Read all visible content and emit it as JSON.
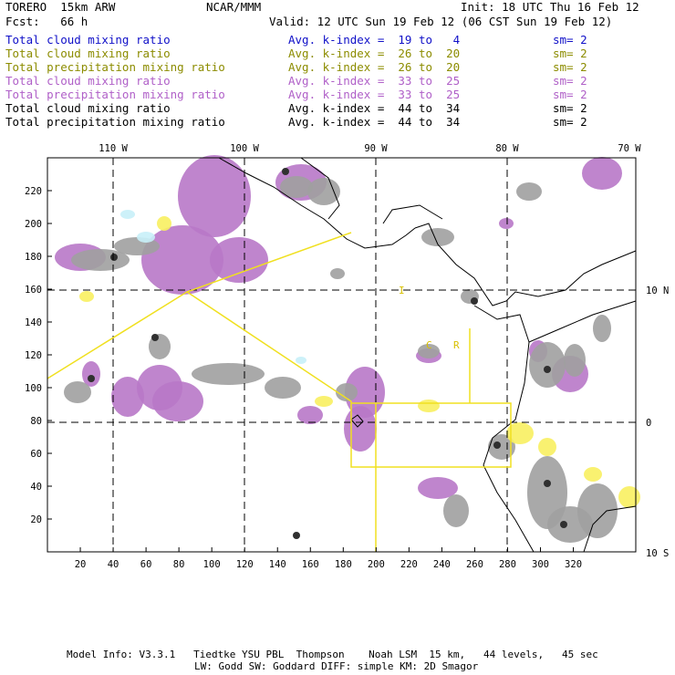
{
  "header": {
    "model": "TORERO  15km ARW",
    "org": "NCAR/MMM",
    "init": "Init: 18 UTC Thu 16 Feb 12",
    "fcst": "Fcst:   66 h",
    "valid": "Valid: 12 UTC Sun 19 Feb 12 (06 CST Sun 19 Feb 12)"
  },
  "legend": [
    {
      "field": "Total cloud mixing ratio",
      "index": "Avg. k-index =  19 to   4",
      "sm": "sm= 2",
      "color": "#1010c8"
    },
    {
      "field": "Total cloud mixing ratio",
      "index": "Avg. k-index =  26 to  20",
      "sm": "sm= 2",
      "color": "#8c8c00"
    },
    {
      "field": "Total precipitation mixing ratio",
      "index": "Avg. k-index =  26 to  20",
      "sm": "sm= 2",
      "color": "#8c8c00"
    },
    {
      "field": "Total cloud mixing ratio",
      "index": "Avg. k-index =  33 to  25",
      "sm": "sm= 2",
      "color": "#b060c8"
    },
    {
      "field": "Total precipitation mixing ratio",
      "index": "Avg. k-index =  33 to  25",
      "sm": "sm= 2",
      "color": "#b060c8"
    },
    {
      "field": "Total cloud mixing ratio",
      "index": "Avg. k-index =  44 to  34",
      "sm": "sm= 2",
      "color": "#000000"
    },
    {
      "field": "Total precipitation mixing ratio",
      "index": "Avg. k-index =  44 to  34",
      "sm": "sm= 2",
      "color": "#000000"
    }
  ],
  "map": {
    "top_lon_labels": [
      "110 W",
      "100 W",
      "90 W",
      "80 W",
      "70 W"
    ],
    "right_lat_labels": [
      "10 N",
      "0",
      "10 S"
    ],
    "left_ticks": [
      "220",
      "200",
      "180",
      "160",
      "140",
      "120",
      "100",
      "80",
      "60",
      "40",
      "20"
    ],
    "bottom_ticks": [
      "20",
      "40",
      "60",
      "80",
      "100",
      "120",
      "140",
      "160",
      "180",
      "200",
      "220",
      "240",
      "260",
      "280",
      "300",
      "320"
    ],
    "region_labels": [
      "I",
      "C",
      "R"
    ],
    "colors": {
      "cloud_gray": "#a0a0a0",
      "precip_purple": "#b878c8",
      "yellow": "#f8f060",
      "cyan": "#c8f0f8",
      "box_yellow": "#f0e020"
    }
  },
  "footer": {
    "line1": "Model Info: V3.3.1   Tiedtke YSU PBL  Thompson    Noah LSM  15 km,   44 levels,   45 sec",
    "line2": "LW: Godd SW: Goddard DIFF: simple KM: 2D Smagor"
  }
}
